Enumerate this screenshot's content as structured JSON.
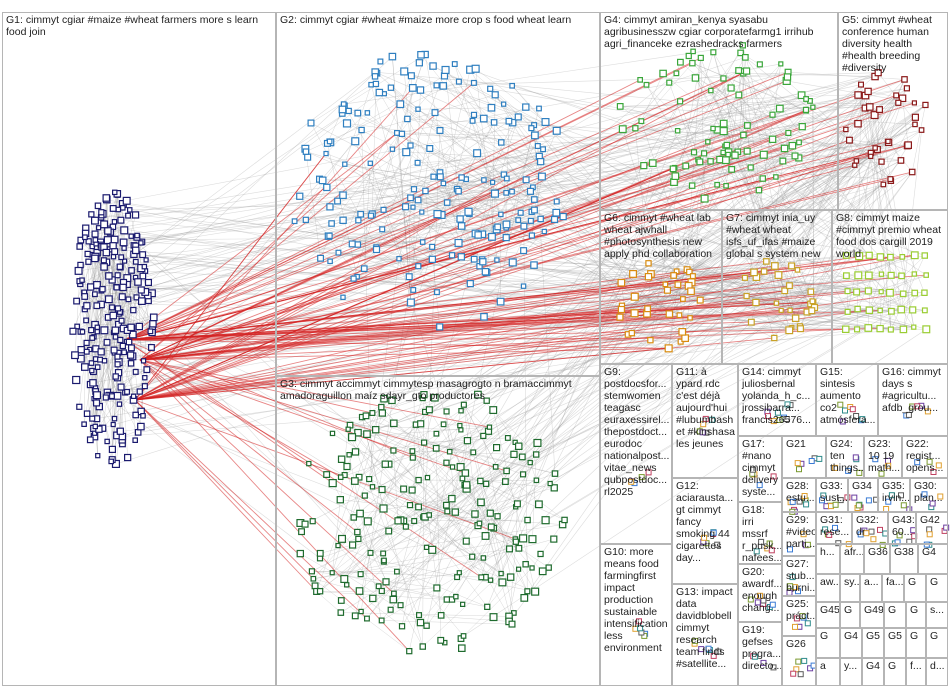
{
  "graph": {
    "groups": [
      {
        "id": "G1",
        "label": "G1: cimmyt cgiar #maize #wheat farmers more s learn food join",
        "color": "#1a1a6e"
      },
      {
        "id": "G2",
        "label": "G2: cimmyt cgiar #wheat #maize more crop s food wheat learn",
        "color": "#2f7fc0"
      },
      {
        "id": "G3",
        "label": "G3: cimmyt accimmyt cimmytesp masagrogto n bramaccimmyt amadoraguillon maíz sdayr_gto productores",
        "color": "#1f6b2e"
      },
      {
        "id": "G4",
        "label": "G4: cimmyt amiran_kenya syasabu agribusinesszw cgiar corporatefarmg1 irrihub agri_financeke ezrashedracks farmers",
        "color": "#3aa63a"
      },
      {
        "id": "G5",
        "label": "G5: cimmyt #wheat conference human diversity health #health breeding #diversity",
        "color": "#8b1a1a"
      },
      {
        "id": "G6",
        "label": "G6: cimmyt #wheat lab wheat ajwhall #photosynthesis new apply phd collaboration",
        "color": "#d98c10"
      },
      {
        "id": "G7",
        "label": "G7: cimmyt inia_uy #wheat wheat isfs_uf_ifas #maize global s system new",
        "color": "#c9a227"
      },
      {
        "id": "G8",
        "label": "G8: cimmyt maize #cimmyt premio wheat food dos cargill 2019 world",
        "color": "#9acd32"
      },
      {
        "id": "G9",
        "label": "G9: postdocsfor... stemwomen teagasc euraxessirel... thepostdoct... eurodoc nationalpost... vitae_news qubpostdoc... rl2025",
        "color": "#777777"
      },
      {
        "id": "G10",
        "label": "G10: more means food farmingfirst impact production sustainable intensification less environment",
        "color": "#777777"
      },
      {
        "id": "G11",
        "label": "G11: à ypard rdc c'est déjà aujourd'hui #lubumbash et #kinshasa les jeunes",
        "color": "#777777"
      },
      {
        "id": "G12",
        "label": "G12: aciarausta... gt cimmyt fancy smoking 44 cigarettes day...",
        "color": "#777777"
      },
      {
        "id": "G13",
        "label": "G13: impact data davidblobell cimmyt research team finds #satellite...",
        "color": "#777777"
      },
      {
        "id": "G14",
        "label": "G14: cimmyt juliosbernal yolanda_h_c... jrossibarra... francis26576...",
        "color": "#777777"
      },
      {
        "id": "G15",
        "label": "G15: sintesis aumento co2 atmósfera...",
        "color": "#777777"
      },
      {
        "id": "G16",
        "label": "G16: cimmyt days s #agricultu... afdb_grou...",
        "color": "#777777"
      },
      {
        "id": "G17",
        "label": "G17: #nano cimmyt delivery syste...",
        "color": "#777777"
      },
      {
        "id": "G18",
        "label": "G18: irri mssrf r_pusk... nafees...",
        "color": "#777777"
      },
      {
        "id": "G19",
        "label": "G19: gefses progra... directo...",
        "color": "#777777"
      },
      {
        "id": "G20",
        "label": "G20: awardf... enough chang...",
        "color": "#777777"
      },
      {
        "id": "G21",
        "label": "G21",
        "color": "#777777"
      },
      {
        "id": "G22",
        "label": "G22: regist... opens...",
        "color": "#777777"
      },
      {
        "id": "G23",
        "label": "G23: 10 19 math...",
        "color": "#777777"
      },
      {
        "id": "G24",
        "label": "G24: ten things...",
        "color": "#777777"
      },
      {
        "id": "G25",
        "label": "G25: práct...",
        "color": "#777777"
      },
      {
        "id": "G26",
        "label": "G26",
        "color": "#777777"
      },
      {
        "id": "G27",
        "label": "G27: stub... burni...",
        "color": "#777777"
      },
      {
        "id": "G28",
        "label": "G28: estu...",
        "color": "#777777"
      },
      {
        "id": "G29",
        "label": "G29: #video parti...",
        "color": "#777777"
      },
      {
        "id": "G30",
        "label": "G30: plan...",
        "color": "#777777"
      },
      {
        "id": "G31",
        "label": "G31: rese...",
        "color": "#777777"
      },
      {
        "id": "G32",
        "label": "G32: dr",
        "color": "#777777"
      },
      {
        "id": "G33",
        "label": "G33: sust...",
        "color": "#777777"
      },
      {
        "id": "G34",
        "label": "G34",
        "color": "#777777"
      },
      {
        "id": "G35",
        "label": "G35: irvin...",
        "color": "#777777"
      },
      {
        "id": "G36",
        "label": "G36",
        "color": "#777777"
      },
      {
        "id": "G38",
        "label": "G38",
        "color": "#777777"
      },
      {
        "id": "G42",
        "label": "G42",
        "color": "#777777"
      },
      {
        "id": "G43",
        "label": "G43: 60...",
        "color": "#777777"
      }
    ],
    "fragment_labels": [
      "G4",
      "h...",
      "fa...",
      "afr...",
      "G",
      "G4",
      "G",
      "G",
      "aw...",
      "sy...",
      "a...",
      "fa...",
      "G",
      "G45",
      "G",
      "G49",
      "G",
      "G",
      "l...",
      "u...",
      "l...",
      "s...",
      "G",
      "G4",
      "G5",
      "G5",
      "G",
      "G4",
      "G",
      "a",
      "y...",
      "f...",
      "d..."
    ]
  }
}
